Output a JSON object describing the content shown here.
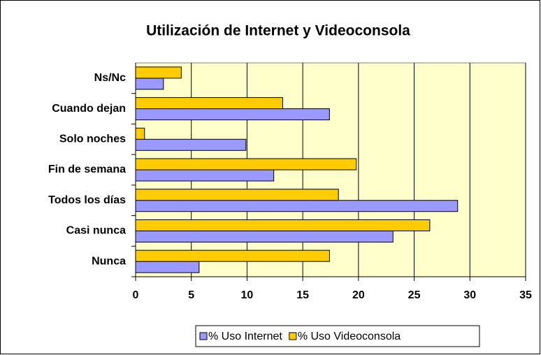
{
  "chart_data": {
    "type": "hbar",
    "title": "Utilización de Internet y Videoconsola",
    "categories": [
      "Nunca",
      "Casi nunca",
      "Todos los días",
      "Fin de semana",
      "Solo noches",
      "Cuando dejan",
      "Ns/Nc"
    ],
    "series": [
      {
        "name": "% Uso Internet",
        "color": "#9999ff",
        "values": [
          5.7,
          23.1,
          28.9,
          12.4,
          9.9,
          17.4,
          2.5
        ]
      },
      {
        "name": "% Uso Videoconsola",
        "color": "#ffcc00",
        "values": [
          17.4,
          26.4,
          18.2,
          19.8,
          0.8,
          13.2,
          4.1
        ]
      }
    ],
    "xlim": [
      0,
      35
    ],
    "xticks": [
      0,
      5,
      10,
      15,
      20,
      25,
      30,
      35
    ],
    "grid": true
  }
}
